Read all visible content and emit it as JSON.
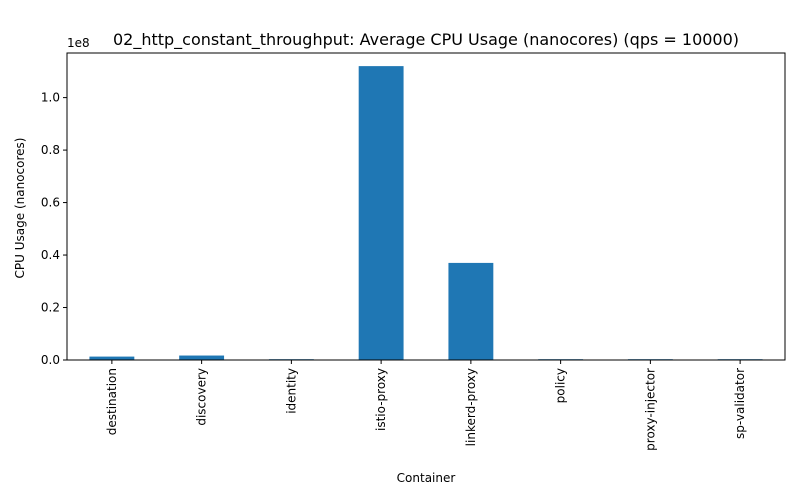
{
  "chart_data": {
    "type": "bar",
    "title": "02_http_constant_throughput: Average CPU Usage (nanocores) (qps = 10000)",
    "xlabel": "Container",
    "ylabel": "CPU Usage (nanocores)",
    "y_offset_label": "1e8",
    "categories": [
      "destination",
      "discovery",
      "identity",
      "istio-proxy",
      "linkerd-proxy",
      "policy",
      "proxy-injector",
      "sp-validator"
    ],
    "values": [
      1300000,
      1700000,
      300000,
      112000000,
      37000000,
      300000,
      300000,
      300000
    ],
    "ylim": [
      0,
      117000000
    ],
    "yticks": [
      0,
      20000000,
      40000000,
      60000000,
      80000000,
      100000000
    ],
    "ytick_labels": [
      "0.0",
      "0.2",
      "0.4",
      "0.6",
      "0.8",
      "1.0"
    ],
    "bar_color": "#1f77b4",
    "grid": false,
    "legend": "none"
  }
}
